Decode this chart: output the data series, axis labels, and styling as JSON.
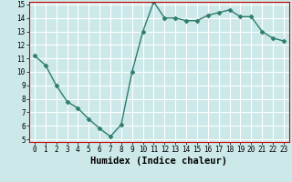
{
  "x": [
    0,
    1,
    2,
    3,
    4,
    5,
    6,
    7,
    8,
    9,
    10,
    11,
    12,
    13,
    14,
    15,
    16,
    17,
    18,
    19,
    20,
    21,
    22,
    23
  ],
  "y": [
    11.2,
    10.5,
    9.0,
    7.8,
    7.3,
    6.5,
    5.8,
    5.2,
    6.1,
    10.0,
    13.0,
    15.2,
    14.0,
    14.0,
    13.8,
    13.8,
    14.2,
    14.4,
    14.6,
    14.1,
    14.1,
    13.0,
    12.5,
    12.3
  ],
  "line_color": "#2e7d6e",
  "marker": "D",
  "xlabel": "Humidex (Indice chaleur)",
  "ylim_min": 5,
  "ylim_max": 15,
  "xlim_min": 0,
  "xlim_max": 23,
  "yticks": [
    5,
    6,
    7,
    8,
    9,
    10,
    11,
    12,
    13,
    14,
    15
  ],
  "xticks": [
    0,
    1,
    2,
    3,
    4,
    5,
    6,
    7,
    8,
    9,
    10,
    11,
    12,
    13,
    14,
    15,
    16,
    17,
    18,
    19,
    20,
    21,
    22,
    23
  ],
  "bg_color": "#cce8e8",
  "grid_color": "#ffffff",
  "tick_fontsize": 5.5,
  "xlabel_fontsize": 7.5,
  "border_color": "#cc0000"
}
